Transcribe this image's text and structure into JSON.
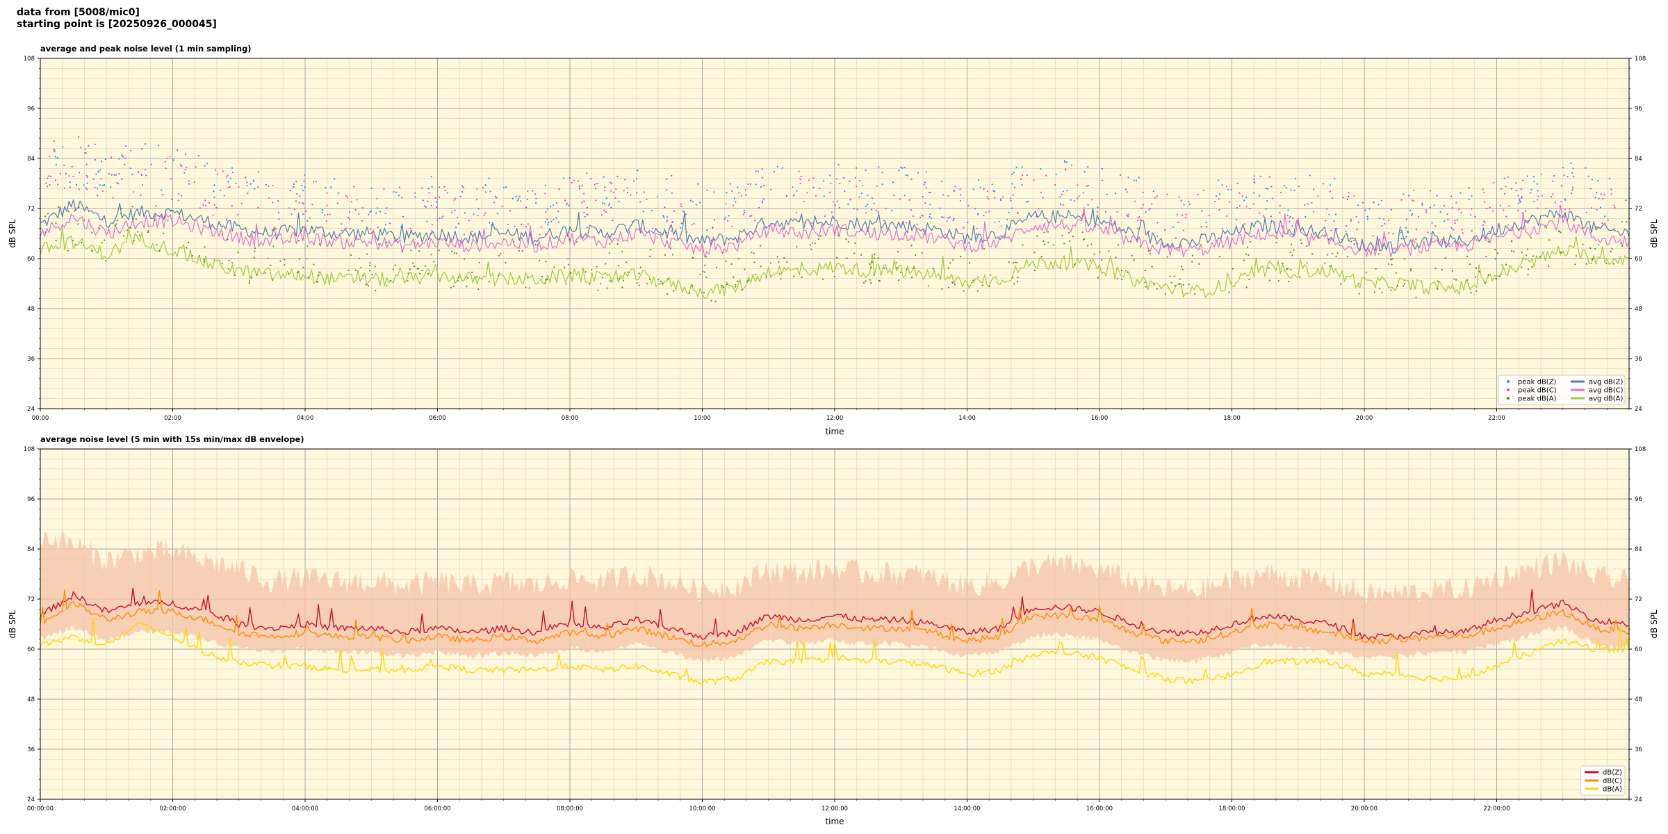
{
  "header": {
    "line1": "data from [5008/mic0]",
    "line2": "starting point is [20250926_000045]"
  },
  "chart_data": [
    {
      "type": "line",
      "title": "average and peak noise level (1 min sampling)",
      "xlabel": "time",
      "ylabel": "dB SPL",
      "ylim": [
        24,
        108
      ],
      "yticks": [
        24,
        36,
        48,
        60,
        72,
        84,
        96,
        108
      ],
      "xlim_hours": [
        0,
        24
      ],
      "xticks_hours": [
        0,
        2,
        4,
        6,
        8,
        10,
        12,
        14,
        16,
        18,
        20,
        22
      ],
      "xtick_labels": [
        "00:00",
        "02:00",
        "04:00",
        "06:00",
        "08:00",
        "10:00",
        "12:00",
        "14:00",
        "16:00",
        "18:00",
        "20:00",
        "22:00"
      ],
      "grid": true,
      "background": "#fff8dc",
      "legend_position": "bottom-right",
      "x_hours": [
        0,
        0.5,
        1,
        1.5,
        2,
        2.5,
        3,
        3.5,
        4,
        4.5,
        5,
        5.5,
        6,
        6.5,
        7,
        7.5,
        8,
        8.5,
        9,
        9.5,
        10,
        10.5,
        11,
        11.5,
        12,
        12.5,
        13,
        13.5,
        14,
        14.5,
        15,
        15.5,
        16,
        16.5,
        17,
        17.5,
        18,
        18.5,
        19,
        19.5,
        20,
        20.5,
        21,
        21.5,
        22,
        22.5,
        23,
        23.5,
        24
      ],
      "series": [
        {
          "name": "avg dB(Z)",
          "kind": "line",
          "color": "#4f7fb0",
          "values": [
            68,
            73,
            69,
            71,
            71,
            69,
            67,
            66,
            67,
            66,
            66,
            65,
            66,
            65,
            66,
            65,
            67,
            66,
            68,
            66,
            64,
            65,
            69,
            68,
            69,
            68,
            68,
            67,
            65,
            66,
            70,
            70,
            69,
            66,
            64,
            64,
            66,
            68,
            67,
            66,
            63,
            63,
            64,
            64,
            67,
            69,
            71,
            67,
            66
          ]
        },
        {
          "name": "avg dB(C)",
          "kind": "line",
          "color": "#e070d0",
          "values": [
            66,
            70,
            66,
            69,
            69,
            67,
            65,
            64,
            65,
            64,
            64,
            63,
            64,
            63,
            64,
            63,
            65,
            64,
            66,
            64,
            62,
            63,
            67,
            66,
            67,
            66,
            66,
            65,
            63,
            64,
            68,
            68,
            67,
            64,
            62,
            62,
            64,
            66,
            65,
            64,
            62,
            62,
            63,
            63,
            65,
            67,
            69,
            65,
            64
          ]
        },
        {
          "name": "avg dB(A)",
          "kind": "line",
          "color": "#9ccc3c",
          "values": [
            62,
            64,
            61,
            65,
            62,
            59,
            57,
            56,
            56,
            55,
            55,
            55,
            56,
            55,
            55,
            55,
            56,
            55,
            56,
            54,
            52,
            53,
            57,
            57,
            58,
            57,
            57,
            56,
            54,
            55,
            59,
            59,
            58,
            55,
            53,
            52,
            54,
            57,
            57,
            57,
            54,
            54,
            53,
            53,
            56,
            59,
            62,
            60,
            60
          ]
        },
        {
          "name": "peak dB(Z)",
          "kind": "points",
          "color": "#1e90ff",
          "values": [
            82,
            84,
            80,
            82,
            81,
            79,
            76,
            74,
            75,
            74,
            74,
            73,
            74,
            73,
            74,
            73,
            75,
            74,
            76,
            74,
            72,
            73,
            77,
            76,
            77,
            76,
            76,
            75,
            73,
            74,
            78,
            78,
            77,
            74,
            72,
            72,
            74,
            76,
            75,
            74,
            70,
            70,
            71,
            71,
            75,
            77,
            79,
            75,
            74
          ]
        },
        {
          "name": "peak dB(C)",
          "kind": "points",
          "color": "#ff33cc",
          "values": [
            80,
            82,
            78,
            80,
            79,
            77,
            74,
            72,
            73,
            72,
            72,
            71,
            72,
            71,
            72,
            71,
            73,
            72,
            74,
            72,
            70,
            71,
            75,
            74,
            75,
            74,
            74,
            73,
            71,
            72,
            76,
            76,
            75,
            72,
            70,
            70,
            72,
            74,
            73,
            72,
            68,
            68,
            69,
            69,
            73,
            75,
            77,
            73,
            72
          ]
        },
        {
          "name": "peak dB(A)",
          "kind": "points",
          "color": "#4c8c2c",
          "values": [
            66,
            68,
            65,
            68,
            66,
            62,
            60,
            59,
            59,
            58,
            58,
            58,
            59,
            58,
            58,
            58,
            59,
            58,
            59,
            57,
            55,
            56,
            60,
            60,
            61,
            60,
            60,
            59,
            57,
            58,
            62,
            62,
            61,
            58,
            56,
            55,
            57,
            60,
            60,
            60,
            57,
            57,
            56,
            56,
            59,
            62,
            65,
            63,
            63
          ]
        }
      ],
      "legend": [
        {
          "label": "peak dB(Z)",
          "kind": "point",
          "color": "#1e90ff"
        },
        {
          "label": "peak dB(C)",
          "kind": "point",
          "color": "#ff33cc"
        },
        {
          "label": "peak dB(A)",
          "kind": "point",
          "color": "#4c8c2c"
        },
        {
          "label": "avg dB(Z)",
          "kind": "line",
          "color": "#4f7fb0"
        },
        {
          "label": "avg dB(C)",
          "kind": "line",
          "color": "#e070d0"
        },
        {
          "label": "avg dB(A)",
          "kind": "line",
          "color": "#9ccc3c"
        }
      ]
    },
    {
      "type": "line",
      "title": "average noise level (5 min with 15s min/max dB envelope)",
      "xlabel": "time",
      "ylabel": "dB SPL",
      "ylim": [
        24,
        108
      ],
      "yticks": [
        24,
        36,
        48,
        60,
        72,
        84,
        96,
        108
      ],
      "xlim_hours": [
        0,
        24
      ],
      "xticks_hours": [
        0,
        2,
        4,
        6,
        8,
        10,
        12,
        14,
        16,
        18,
        20,
        22
      ],
      "xtick_labels": [
        "00:00:00",
        "02:00:00",
        "04:00:00",
        "06:00:00",
        "08:00:00",
        "10:00:00",
        "12:00:00",
        "14:00:00",
        "16:00:00",
        "18:00:00",
        "20:00:00",
        "22:00:00"
      ],
      "grid": true,
      "background": "#fff8dc",
      "legend_position": "bottom-right",
      "x_hours": [
        0,
        0.5,
        1,
        1.5,
        2,
        2.5,
        3,
        3.5,
        4,
        4.5,
        5,
        5.5,
        6,
        6.5,
        7,
        7.5,
        8,
        8.5,
        9,
        9.5,
        10,
        10.5,
        11,
        11.5,
        12,
        12.5,
        13,
        13.5,
        14,
        14.5,
        15,
        15.5,
        16,
        16.5,
        17,
        17.5,
        18,
        18.5,
        19,
        19.5,
        20,
        20.5,
        21,
        21.5,
        22,
        22.5,
        23,
        23.5,
        24
      ],
      "envelope": {
        "color": "#f5c3a8",
        "min": [
          63,
          66,
          63,
          65,
          65,
          63,
          61,
          60,
          61,
          60,
          60,
          59,
          60,
          59,
          60,
          59,
          61,
          60,
          62,
          60,
          58,
          59,
          63,
          62,
          63,
          62,
          62,
          61,
          59,
          60,
          64,
          64,
          63,
          60,
          58,
          58,
          60,
          62,
          61,
          60,
          59,
          59,
          60,
          60,
          62,
          64,
          66,
          62,
          61
        ],
        "max": [
          86,
          84,
          80,
          82,
          82,
          80,
          78,
          75,
          76,
          75,
          75,
          74,
          75,
          74,
          75,
          74,
          76,
          75,
          77,
          75,
          73,
          74,
          78,
          77,
          78,
          77,
          77,
          76,
          74,
          75,
          79,
          79,
          78,
          75,
          73,
          73,
          75,
          77,
          76,
          75,
          72,
          72,
          73,
          73,
          76,
          78,
          80,
          76,
          75
        ]
      },
      "series": [
        {
          "name": "dB(Z)",
          "kind": "line",
          "color": "#c8102e",
          "values": [
            68,
            73,
            69,
            71,
            71,
            69,
            66,
            65,
            66,
            65,
            65,
            64,
            65,
            64,
            65,
            64,
            66,
            65,
            67,
            65,
            63,
            64,
            68,
            67,
            68,
            67,
            67,
            66,
            64,
            65,
            70,
            70,
            69,
            66,
            64,
            64,
            66,
            68,
            67,
            66,
            63,
            63,
            64,
            64,
            67,
            69,
            71,
            67,
            66
          ]
        },
        {
          "name": "dB(C)",
          "kind": "line",
          "color": "#ff8c00",
          "values": [
            66,
            71,
            67,
            69,
            69,
            67,
            64,
            63,
            64,
            63,
            63,
            62,
            63,
            62,
            63,
            62,
            64,
            63,
            65,
            63,
            61,
            62,
            66,
            65,
            66,
            65,
            65,
            64,
            62,
            63,
            68,
            68,
            67,
            64,
            62,
            62,
            64,
            66,
            65,
            64,
            62,
            62,
            63,
            63,
            65,
            67,
            69,
            65,
            64
          ]
        },
        {
          "name": "dB(A)",
          "kind": "line",
          "color": "#ffd700",
          "values": [
            61,
            63,
            61,
            66,
            63,
            59,
            57,
            56,
            56,
            55,
            55,
            55,
            56,
            55,
            55,
            55,
            56,
            55,
            56,
            54,
            52,
            53,
            57,
            57,
            58,
            57,
            57,
            56,
            54,
            55,
            59,
            59,
            58,
            55,
            53,
            52,
            54,
            57,
            57,
            57,
            54,
            54,
            53,
            53,
            56,
            59,
            62,
            60,
            60
          ]
        }
      ],
      "legend": [
        {
          "label": "dB(Z)",
          "kind": "line",
          "color": "#c8102e"
        },
        {
          "label": "dB(C)",
          "kind": "line",
          "color": "#ff8c00"
        },
        {
          "label": "dB(A)",
          "kind": "line",
          "color": "#ffd700"
        }
      ]
    }
  ]
}
